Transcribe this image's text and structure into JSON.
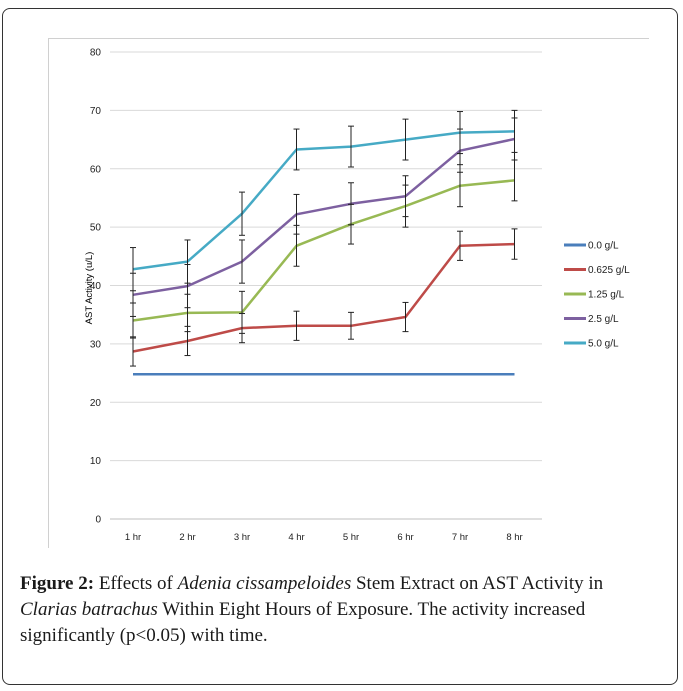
{
  "chart_data": {
    "type": "line",
    "title": "",
    "xlabel": "",
    "ylabel": "AST Activity (u/L)",
    "ylim": [
      0,
      80
    ],
    "yticks": [
      0,
      10,
      20,
      30,
      40,
      50,
      60,
      70,
      80
    ],
    "categories": [
      "1 hr",
      "2 hr",
      "3 hr",
      "4 hr",
      "5 hr",
      "6 hr",
      "7 hr",
      "8 hr"
    ],
    "grid": true,
    "legend_position": "right",
    "series": [
      {
        "name": "0.0 g/L",
        "color": "#4a7ebb",
        "values": [
          24.8,
          24.8,
          24.8,
          24.8,
          24.8,
          24.8,
          24.8,
          24.8
        ],
        "errors": [
          0,
          0,
          0,
          0,
          0,
          0,
          0,
          0
        ]
      },
      {
        "name": "0.625 g/L",
        "color": "#be4b48",
        "values": [
          28.7,
          30.5,
          32.7,
          33.1,
          33.1,
          34.6,
          46.8,
          47.1
        ],
        "errors": [
          2.5,
          2.5,
          2.5,
          2.5,
          2.3,
          2.5,
          2.5,
          2.6
        ]
      },
      {
        "name": "1.25 g/L",
        "color": "#98b954",
        "values": [
          34.0,
          35.3,
          35.4,
          46.8,
          50.5,
          53.6,
          57.1,
          58.0
        ],
        "errors": [
          3.0,
          3.2,
          3.6,
          3.5,
          3.4,
          3.6,
          3.6,
          3.5
        ]
      },
      {
        "name": "2.5 g/L",
        "color": "#7d60a0",
        "values": [
          38.4,
          39.9,
          44.1,
          52.2,
          54.0,
          55.3,
          63.1,
          65.1
        ],
        "errors": [
          3.7,
          3.7,
          3.7,
          3.4,
          3.6,
          3.5,
          3.7,
          3.6
        ]
      },
      {
        "name": "5.0 g/L",
        "color": "#46aac5",
        "values": [
          42.8,
          44.1,
          52.3,
          63.3,
          63.8,
          65.0,
          66.2,
          66.4
        ],
        "errors": [
          3.7,
          3.7,
          3.7,
          3.5,
          3.5,
          3.5,
          3.6,
          3.6
        ]
      }
    ]
  },
  "caption": {
    "label": "Figure 2:",
    "text_1": " Effects of ",
    "species_1": "Adenia cissampeloides",
    "text_2": " Stem Extract on AST Activity in ",
    "species_2": "Clarias batrachus",
    "text_3": " Within Eight Hours of Exposure. The activity increased significantly (p<0.05) with time."
  }
}
